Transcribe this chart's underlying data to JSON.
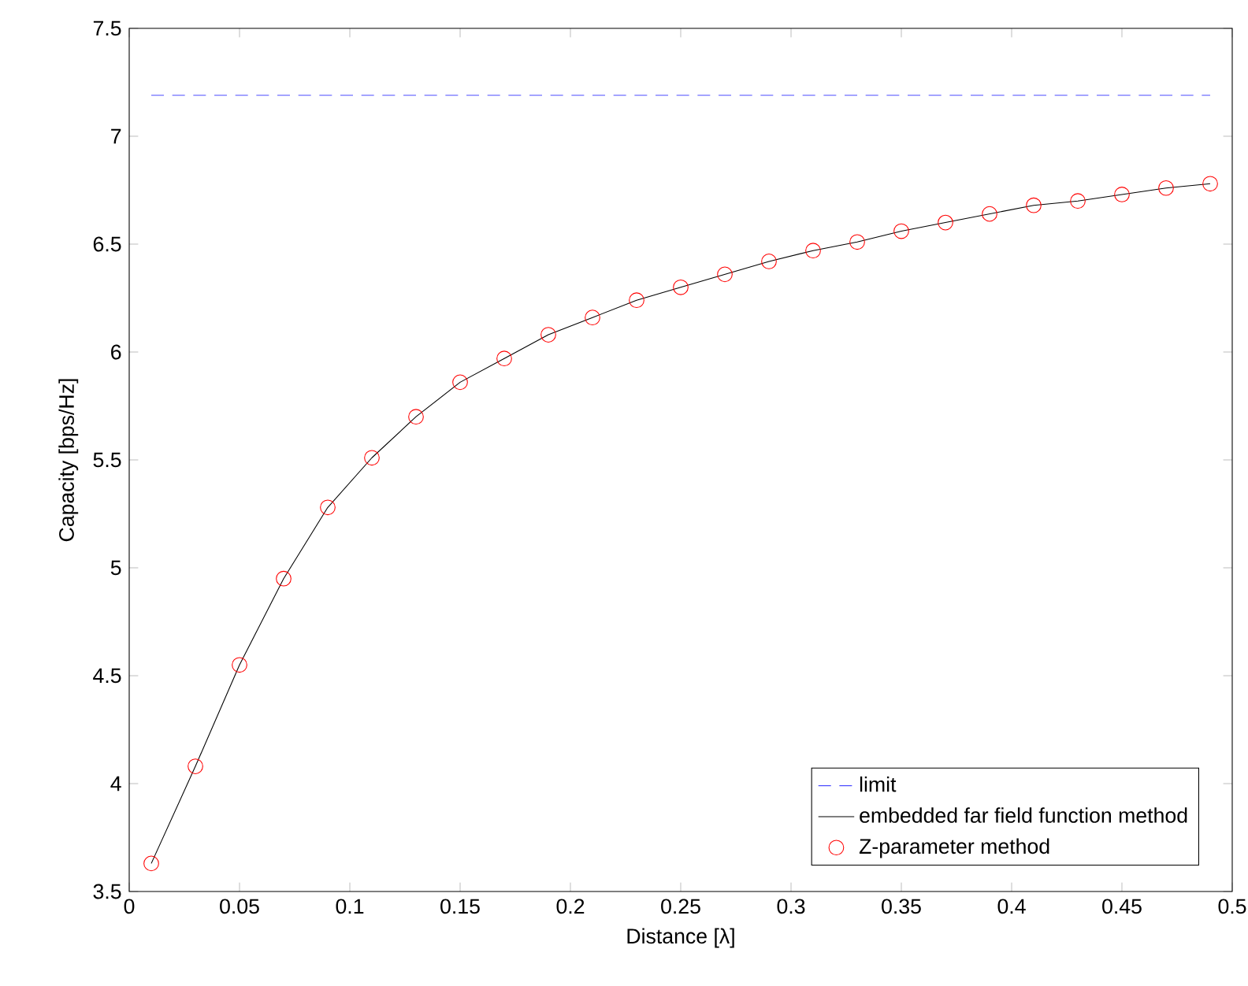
{
  "chart_data": {
    "type": "line",
    "xlabel": "Distance [λ]",
    "ylabel": "Capacity [bps/Hz]",
    "xlim": [
      0,
      0.5
    ],
    "ylim": [
      3.5,
      7.5
    ],
    "xticks": [
      0,
      0.05,
      0.1,
      0.15,
      0.2,
      0.25,
      0.3,
      0.35,
      0.4,
      0.45,
      0.5
    ],
    "yticks": [
      3.5,
      4,
      4.5,
      5,
      5.5,
      6,
      6.5,
      7,
      7.5
    ],
    "legend": "bottom right",
    "series": [
      {
        "name": "limit",
        "color": "#4d4dff",
        "line_style": "dashed",
        "marker": "none",
        "x": [
          0.01,
          0.49
        ],
        "values": [
          7.19,
          7.19
        ]
      },
      {
        "name": "embedded far field function method",
        "color": "#000000",
        "line_style": "solid",
        "marker": "none",
        "x": [
          0.01,
          0.03,
          0.05,
          0.07,
          0.09,
          0.11,
          0.13,
          0.15,
          0.17,
          0.19,
          0.21,
          0.23,
          0.25,
          0.27,
          0.29,
          0.31,
          0.33,
          0.35,
          0.37,
          0.39,
          0.41,
          0.43,
          0.45,
          0.47,
          0.49
        ],
        "values": [
          3.63,
          4.08,
          4.55,
          4.95,
          5.28,
          5.51,
          5.7,
          5.86,
          5.97,
          6.08,
          6.16,
          6.24,
          6.3,
          6.36,
          6.42,
          6.47,
          6.51,
          6.56,
          6.6,
          6.64,
          6.68,
          6.7,
          6.73,
          6.76,
          6.78
        ]
      },
      {
        "name": "Z-parameter method",
        "type": "scatter",
        "color": "#ff0000",
        "marker": "circle",
        "x": [
          0.01,
          0.03,
          0.05,
          0.07,
          0.09,
          0.11,
          0.13,
          0.15,
          0.17,
          0.19,
          0.21,
          0.23,
          0.25,
          0.27,
          0.29,
          0.31,
          0.33,
          0.35,
          0.37,
          0.39,
          0.41,
          0.43,
          0.45,
          0.47,
          0.49
        ],
        "values": [
          3.63,
          4.08,
          4.55,
          4.95,
          5.28,
          5.51,
          5.7,
          5.86,
          5.97,
          6.08,
          6.16,
          6.24,
          6.3,
          6.36,
          6.42,
          6.47,
          6.51,
          6.56,
          6.6,
          6.64,
          6.68,
          6.7,
          6.73,
          6.76,
          6.78
        ]
      }
    ]
  }
}
